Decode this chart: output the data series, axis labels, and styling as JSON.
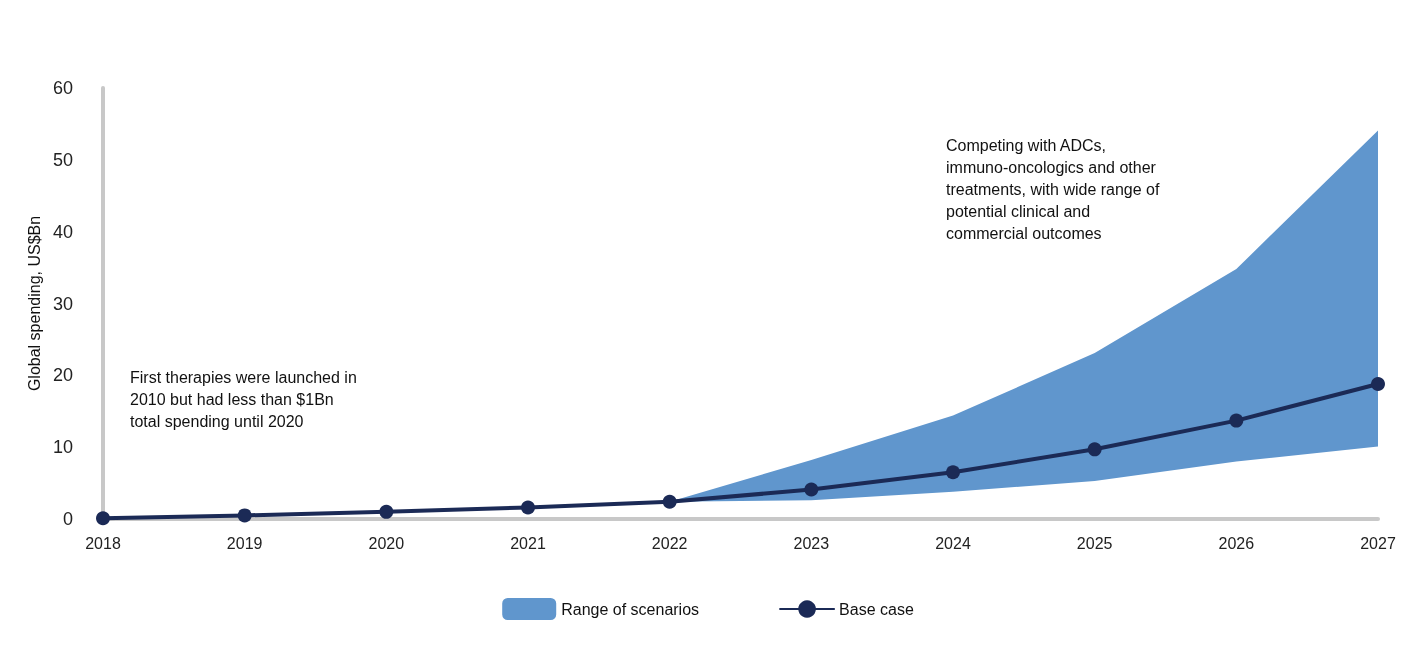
{
  "chart_data": {
    "type": "line",
    "ylabel": "Global spending, US$Bn",
    "categories": [
      "2018",
      "2019",
      "2020",
      "2021",
      "2022",
      "2023",
      "2024",
      "2025",
      "2026",
      "2027"
    ],
    "series": [
      {
        "name": "Range of scenarios",
        "type": "area",
        "color": "#6096cd",
        "marker": "none",
        "values": [
          null,
          null,
          null,
          null,
          null,
          null,
          null,
          null,
          null,
          null
        ],
        "lower": [
          null,
          null,
          null,
          null,
          2.4,
          2.6,
          3.8,
          5.3,
          8.0,
          10.1
        ],
        "upper": [
          null,
          null,
          null,
          null,
          2.4,
          8.2,
          14.4,
          23.1,
          34.8,
          54.1
        ]
      },
      {
        "name": "Base case",
        "color": "#1b2a56",
        "values": [
          0.1,
          0.5,
          1.0,
          1.6,
          2.4,
          4.1,
          6.5,
          9.7,
          13.7,
          18.8
        ]
      }
    ],
    "ylim": [
      0,
      60
    ],
    "yticks": [
      0,
      10,
      20,
      30,
      40,
      50,
      60
    ],
    "grid": false,
    "legend": "bottom",
    "marker": "circle",
    "line_style": "solid",
    "annotations": [
      "First therapies were launched in\n2010 but had less than $1Bn\ntotal spending until 2020",
      "Competing with ADCs,\nimmuno-oncologics and other\ntreatments, with wide range of\npotential clinical and\ncommercial outcomes"
    ]
  }
}
